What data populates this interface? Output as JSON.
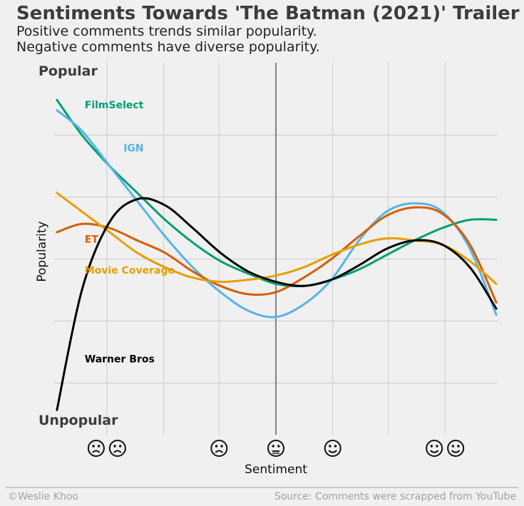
{
  "title": "Sentiments Towards 'The Batman (2021)' Trailer",
  "subtitle_lines": [
    "Positive comments trends similar popularity.",
    "Negative comments have diverse popularity."
  ],
  "top_label": "Popular",
  "bottom_label": "Unpopular",
  "footer_left": "©Weslie Khoo",
  "footer_right": "Source: Comments were scrapped from YouTube",
  "chart_data": {
    "type": "line",
    "xlabel": "Sentiment",
    "ylabel": "Popularity",
    "xlim": [
      -1.6,
      1.6
    ],
    "ylim": [
      -0.85,
      0.95
    ],
    "grid": true,
    "x_tick_values": [
      -1.22,
      -0.81,
      -0.41,
      0.0,
      0.41,
      0.81,
      1.22
    ],
    "x_tick_labels": [
      "😟😟",
      "",
      "😟",
      "😐",
      "😊",
      "",
      "😊😊"
    ],
    "y_tick_values": [
      -0.6,
      -0.3,
      0.0,
      0.3,
      0.6
    ],
    "center_line_x": 0,
    "x": [
      -1.58,
      -1.4,
      -1.2,
      -1.0,
      -0.8,
      -0.6,
      -0.4,
      -0.2,
      0.0,
      0.2,
      0.4,
      0.6,
      0.8,
      1.0,
      1.2,
      1.4,
      1.59
    ],
    "series": [
      {
        "name": "FilmSelect",
        "color": "#009e73",
        "y": [
          0.77,
          0.6,
          0.45,
          0.32,
          0.19,
          0.08,
          -0.01,
          -0.07,
          -0.12,
          -0.13,
          -0.1,
          -0.05,
          0.02,
          0.09,
          0.15,
          0.19,
          0.19
        ]
      },
      {
        "name": "IGN",
        "color": "#56b4e9",
        "y": [
          0.72,
          0.62,
          0.45,
          0.28,
          0.11,
          -0.04,
          -0.16,
          -0.25,
          -0.28,
          -0.22,
          -0.1,
          0.09,
          0.23,
          0.27,
          0.23,
          0.05,
          -0.27
        ]
      },
      {
        "name": "ET",
        "color": "#d55e00",
        "y": [
          0.13,
          0.17,
          0.15,
          0.09,
          0.03,
          -0.06,
          -0.13,
          -0.17,
          -0.16,
          -0.09,
          0.0,
          0.11,
          0.21,
          0.25,
          0.22,
          0.07,
          -0.21
        ]
      },
      {
        "name": "Movie Coverage",
        "color": "#e69f00",
        "y": [
          0.32,
          0.23,
          0.13,
          0.03,
          -0.04,
          -0.09,
          -0.11,
          -0.1,
          -0.08,
          -0.04,
          0.02,
          0.07,
          0.1,
          0.09,
          0.07,
          -0.01,
          -0.12
        ]
      },
      {
        "name": "Warner Bros",
        "color": "#000000",
        "y": [
          -0.73,
          -0.15,
          0.18,
          0.29,
          0.26,
          0.15,
          0.03,
          -0.06,
          -0.11,
          -0.13,
          -0.1,
          -0.03,
          0.05,
          0.09,
          0.07,
          -0.04,
          -0.24
        ]
      }
    ]
  }
}
